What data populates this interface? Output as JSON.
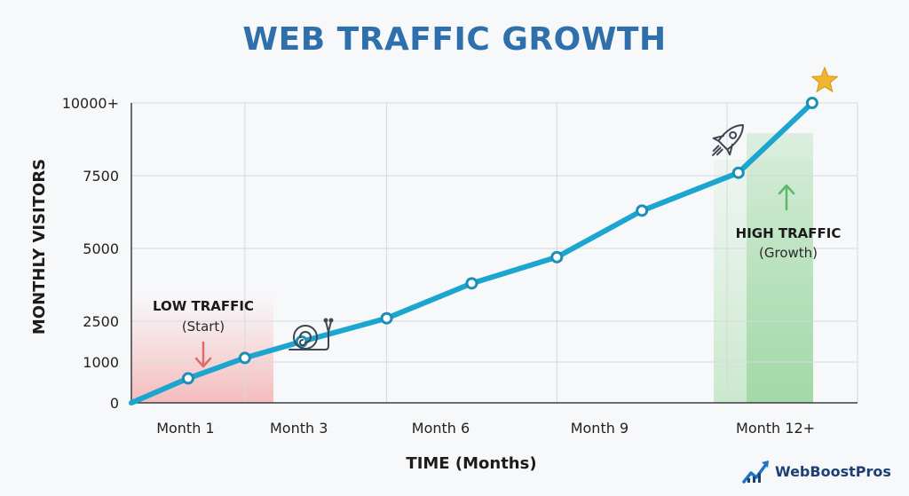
{
  "chart_data": {
    "type": "line",
    "title": "WEB TRAFFIC GROWTH",
    "xlabel": "TIME (Months)",
    "ylabel": "MONTHLY VISITORS",
    "x_tick_labels": [
      "Month 1",
      "Month 3",
      "Month 6",
      "Month 9",
      "Month 12+"
    ],
    "y_tick_labels": [
      "0",
      "1000",
      "2500",
      "5000",
      "7500",
      "10000+"
    ],
    "y_tick_values": [
      0,
      1000,
      2500,
      5000,
      7500,
      10000
    ],
    "ylim": [
      0,
      10000
    ],
    "x_range": [
      0,
      12.8
    ],
    "grid": true,
    "series": [
      {
        "color": "#1ba5cf",
        "points": [
          {
            "x": 0,
            "y": 0
          },
          {
            "x": 1,
            "y": 600
          },
          {
            "x": 2,
            "y": 1150
          },
          {
            "x": 3,
            "y": 1750
          },
          {
            "x": 4.5,
            "y": 2600
          },
          {
            "x": 6,
            "y": 3800
          },
          {
            "x": 7.5,
            "y": 4700
          },
          {
            "x": 9,
            "y": 6300
          },
          {
            "x": 10.7,
            "y": 7600
          },
          {
            "x": 12,
            "y": 10000
          }
        ]
      }
    ],
    "annotations": {
      "low": {
        "title": "LOW TRAFFIC",
        "subtitle": "(Start)",
        "color": "#e06a6a"
      },
      "high": {
        "title": "HIGH TRAFFIC",
        "subtitle": "(Growth)",
        "color": "#5cb86a"
      }
    }
  },
  "branding": {
    "name": "WebBoostPros"
  },
  "colors": {
    "title": "#2f6fab",
    "line": "#1ba5cf",
    "grid": "#d5d9de",
    "star": "#f2b530",
    "brand": "#1d3f73"
  },
  "icons": [
    "snail-icon",
    "rocket-icon",
    "star-icon",
    "down-arrow-icon",
    "up-arrow-icon",
    "brand-logo-icon"
  ]
}
